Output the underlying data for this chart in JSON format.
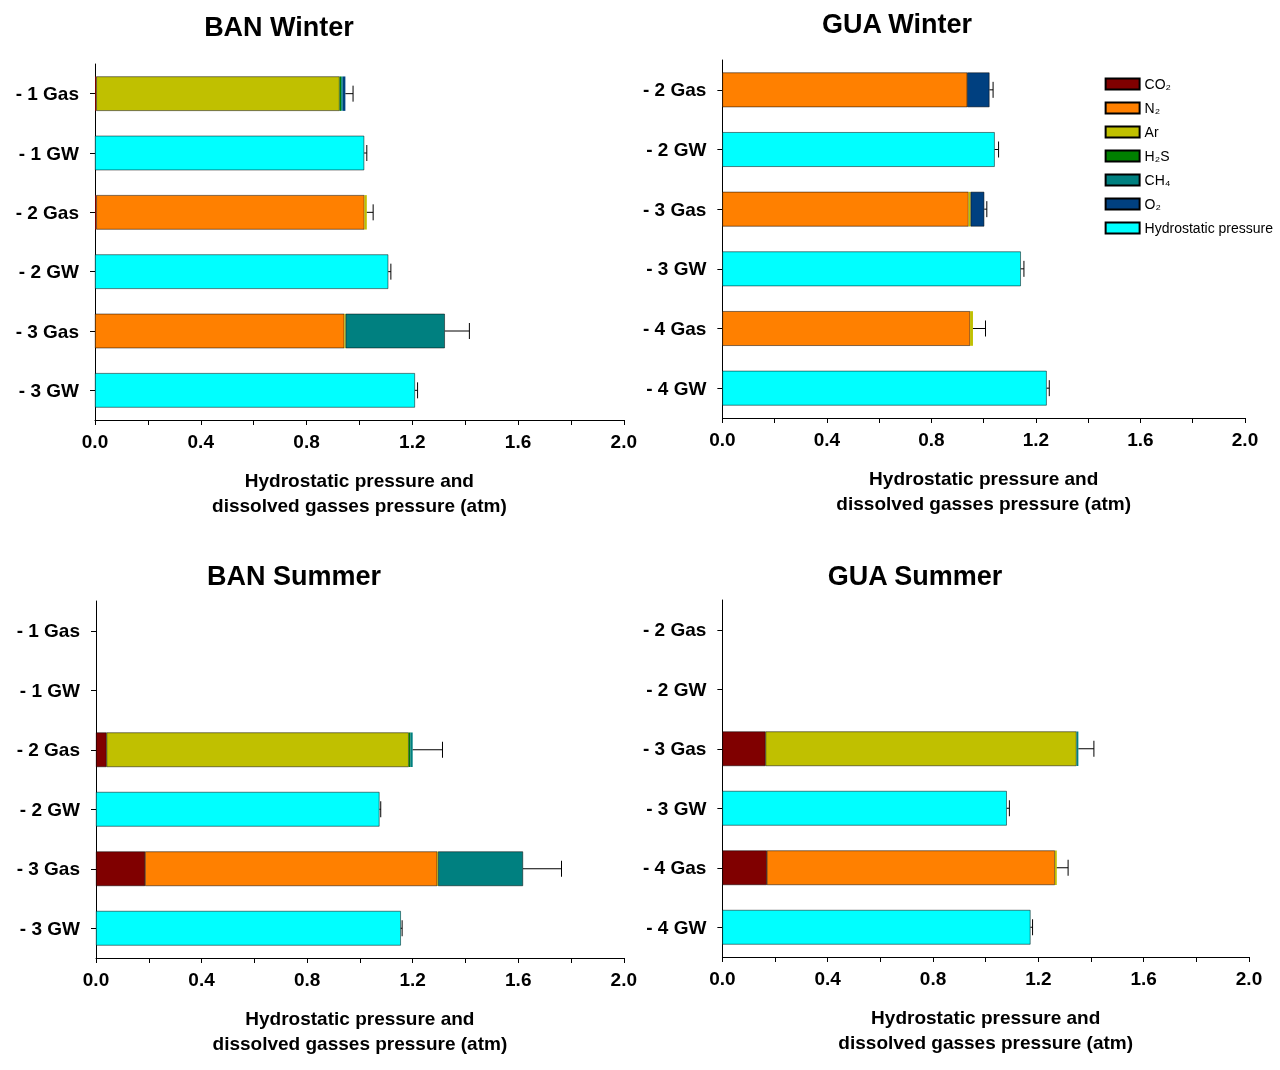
{
  "chart_data": [
    {
      "type": "bar",
      "orientation": "horizontal",
      "stacked": true,
      "title": "BAN Winter",
      "xlabel": "Hydrostatic pressure and\ndissolved gasses pressure (atm)",
      "legend": false,
      "grid": false,
      "categories": [
        "- 1 Gas",
        "- 1 GW",
        "- 2 Gas",
        "- 2 GW",
        "- 3 Gas",
        "- 3 GW"
      ],
      "xlim": [
        0,
        2
      ],
      "xticks": [
        {
          "value": 0,
          "label": "0.0"
        },
        {
          "value": 0.2,
          "label": null
        },
        {
          "value": 0.4,
          "label": "0.4"
        },
        {
          "value": 0.6,
          "label": null
        },
        {
          "value": 0.8,
          "label": "0.8"
        },
        {
          "value": 1,
          "label": null
        },
        {
          "value": 1.2,
          "label": "1.2"
        },
        {
          "value": 1.4,
          "label": null
        },
        {
          "value": 1.6,
          "label": "1.6"
        },
        {
          "value": 1.8,
          "label": null
        },
        {
          "value": 2,
          "label": "2.0"
        }
      ],
      "series": [
        {
          "color": "#800000",
          "values": [
            0.005,
            null,
            0.005,
            null,
            null,
            null
          ]
        },
        {
          "color": "#ff8000",
          "values": [
            null,
            null,
            1.014,
            null,
            0.943,
            null
          ]
        },
        {
          "color": "#c0c000",
          "values": [
            0.92,
            null,
            0.009,
            null,
            0.005,
            null
          ],
          "errors": [
            null,
            null,
            [
              1.028,
              1.052
            ],
            null,
            null,
            null
          ]
        },
        {
          "color": "#008000",
          "values": [
            0.006,
            null,
            null,
            null,
            null,
            null
          ]
        },
        {
          "color": "#008080",
          "values": [
            0.006,
            null,
            null,
            null,
            0.375,
            null
          ],
          "errors": [
            null,
            null,
            null,
            null,
            [
              1.323,
              1.416
            ],
            null
          ]
        },
        {
          "color": "#004080",
          "values": [
            0.01,
            null,
            null,
            null,
            null,
            null
          ],
          "errors": [
            [
              0.947,
              0.976
            ],
            null,
            null,
            null,
            null,
            null
          ]
        },
        {
          "color": "#00ffff",
          "values": [
            null,
            1.018,
            null,
            1.109,
            null,
            1.21
          ],
          "errors": [
            null,
            [
              1.018,
              1.028
            ],
            null,
            [
              1.109,
              1.119
            ],
            null,
            [
              1.21,
              1.22
            ]
          ]
        }
      ]
    },
    {
      "type": "bar",
      "orientation": "horizontal",
      "stacked": true,
      "title": "GUA Winter",
      "xlabel": "Hydrostatic pressure and\ndissolved gasses pressure (atm)",
      "legend": "top right",
      "grid": false,
      "categories": [
        "- 2 Gas",
        "- 2 GW",
        "- 3 Gas",
        "- 3 GW",
        "- 4 Gas",
        "- 4 GW"
      ],
      "xlim": [
        0,
        2
      ],
      "xticks": [
        {
          "value": 0,
          "label": "0.0"
        },
        {
          "value": 0.2,
          "label": null
        },
        {
          "value": 0.4,
          "label": "0.4"
        },
        {
          "value": 0.6,
          "label": null
        },
        {
          "value": 0.8,
          "label": "0.8"
        },
        {
          "value": 1,
          "label": null
        },
        {
          "value": 1.2,
          "label": "1.2"
        },
        {
          "value": 1.4,
          "label": null
        },
        {
          "value": 1.6,
          "label": "1.6"
        },
        {
          "value": 1.8,
          "label": null
        },
        {
          "value": 2,
          "label": "2.0"
        }
      ],
      "series": [
        {
          "name": "CO₂",
          "color": "#800000",
          "values": [
            null,
            null,
            null,
            null,
            null,
            null
          ]
        },
        {
          "name": "N₂",
          "color": "#ff8000",
          "values": [
            0.937,
            null,
            0.942,
            null,
            0.948,
            null
          ]
        },
        {
          "name": "Ar",
          "color": "#c0c000",
          "values": [
            null,
            null,
            0.008,
            null,
            0.011,
            null
          ],
          "errors": [
            null,
            null,
            null,
            null,
            [
              0.959,
              1.007
            ],
            null
          ]
        },
        {
          "name": "H₂S",
          "color": "#008000",
          "values": [
            null,
            null,
            null,
            null,
            null,
            null
          ]
        },
        {
          "name": "CH₄",
          "color": "#008080",
          "values": [
            null,
            null,
            null,
            null,
            null,
            null
          ]
        },
        {
          "name": "O₂",
          "color": "#004080",
          "values": [
            0.085,
            null,
            0.052,
            null,
            null,
            null
          ],
          "errors": [
            [
              1.022,
              1.036
            ],
            null,
            [
              1.002,
              1.012
            ],
            null,
            null,
            null
          ]
        },
        {
          "name": "Hydrostatic pressure",
          "color": "#00ffff",
          "values": [
            null,
            1.042,
            null,
            1.142,
            null,
            1.241
          ],
          "errors": [
            null,
            [
              1.042,
              1.057
            ],
            null,
            [
              1.142,
              1.154
            ],
            null,
            [
              1.241,
              1.251
            ]
          ]
        }
      ]
    },
    {
      "type": "bar",
      "orientation": "horizontal",
      "stacked": true,
      "title": "BAN Summer",
      "xlabel": "Hydrostatic pressure and\ndissolved gasses pressure (atm)",
      "legend": false,
      "grid": false,
      "categories": [
        "- 1 Gas",
        "- 1 GW",
        "- 2 Gas",
        "- 2 GW",
        "- 3 Gas",
        "- 3 GW"
      ],
      "xlim": [
        0,
        2
      ],
      "xticks": [
        {
          "value": 0,
          "label": "0.0"
        },
        {
          "value": 0.2,
          "label": null
        },
        {
          "value": 0.4,
          "label": "0.4"
        },
        {
          "value": 0.6,
          "label": null
        },
        {
          "value": 0.8,
          "label": "0.8"
        },
        {
          "value": 1,
          "label": null
        },
        {
          "value": 1.2,
          "label": "1.2"
        },
        {
          "value": 1.4,
          "label": null
        },
        {
          "value": 1.6,
          "label": "1.6"
        },
        {
          "value": 1.8,
          "label": null
        },
        {
          "value": 2,
          "label": "2.0"
        }
      ],
      "series": [
        {
          "color": "#800000",
          "values": [
            null,
            null,
            0.04,
            null,
            0.186,
            null
          ]
        },
        {
          "color": "#ff8000",
          "values": [
            null,
            null,
            null,
            null,
            1.107,
            null
          ]
        },
        {
          "color": "#c0c000",
          "values": [
            null,
            null,
            1.145,
            null,
            0.003,
            null
          ]
        },
        {
          "color": "#008000",
          "values": [
            null,
            null,
            0.006,
            null,
            null,
            null
          ]
        },
        {
          "color": "#008080",
          "values": [
            null,
            null,
            0.009,
            null,
            0.322,
            null
          ],
          "errors": [
            null,
            null,
            [
              1.2,
              1.313
            ],
            null,
            [
              1.618,
              1.764
            ],
            null
          ]
        },
        {
          "color": "#00ffff",
          "values": [
            null,
            null,
            null,
            1.074,
            null,
            1.155
          ],
          "errors": [
            null,
            null,
            null,
            [
              1.074,
              1.079
            ],
            null,
            [
              1.155,
              1.16
            ]
          ]
        }
      ]
    },
    {
      "type": "bar",
      "orientation": "horizontal",
      "stacked": true,
      "title": "GUA Summer",
      "xlabel": "Hydrostatic pressure and\ndissolved gasses pressure (atm)",
      "legend": false,
      "grid": false,
      "categories": [
        "- 2 Gas",
        "- 2 GW",
        "- 3 Gas",
        "- 3 GW",
        "- 4 Gas",
        "- 4 GW"
      ],
      "xlim": [
        0,
        2
      ],
      "xticks": [
        {
          "value": 0,
          "label": "0.0"
        },
        {
          "value": 0.2,
          "label": null
        },
        {
          "value": 0.4,
          "label": "0.4"
        },
        {
          "value": 0.6,
          "label": null
        },
        {
          "value": 0.8,
          "label": "0.8"
        },
        {
          "value": 1,
          "label": null
        },
        {
          "value": 1.2,
          "label": "1.2"
        },
        {
          "value": 1.4,
          "label": null
        },
        {
          "value": 1.6,
          "label": "1.6"
        },
        {
          "value": 1.8,
          "label": null
        },
        {
          "value": 2,
          "label": "2.0"
        }
      ],
      "series": [
        {
          "color": "#800000",
          "values": [
            null,
            null,
            0.164,
            null,
            0.169,
            null
          ]
        },
        {
          "color": "#ff8000",
          "values": [
            null,
            null,
            null,
            null,
            1.094,
            null
          ]
        },
        {
          "color": "#c0c000",
          "values": [
            null,
            null,
            1.181,
            null,
            0.007,
            null
          ],
          "errors": [
            null,
            null,
            null,
            null,
            [
              1.27,
              1.313
            ],
            null
          ]
        },
        {
          "color": "#008080",
          "values": [
            null,
            null,
            0.007,
            null,
            null,
            null
          ],
          "errors": [
            null,
            null,
            [
              1.352,
              1.411
            ],
            null,
            null,
            null
          ]
        },
        {
          "color": "#00ffff",
          "values": [
            null,
            null,
            null,
            1.08,
            null,
            1.17
          ],
          "errors": [
            null,
            null,
            null,
            [
              1.08,
              1.09
            ],
            null,
            [
              1.17,
              1.178
            ]
          ]
        }
      ]
    }
  ]
}
